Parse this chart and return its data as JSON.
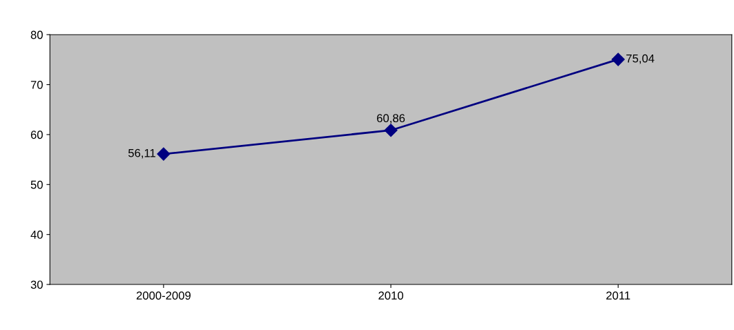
{
  "chart_data": {
    "type": "line",
    "categories": [
      "2000-2009",
      "2010",
      "2011"
    ],
    "series": [
      {
        "color": "#000080",
        "values": [
          56.11,
          60.86,
          75.04
        ],
        "value_labels": [
          "56,11",
          "60,86",
          "75,04"
        ]
      }
    ],
    "ylim": [
      30,
      80
    ],
    "yticks": [
      30,
      40,
      50,
      60,
      70,
      80
    ],
    "grid": false,
    "legend": false,
    "marker": "diamond",
    "line_style": "solid"
  }
}
